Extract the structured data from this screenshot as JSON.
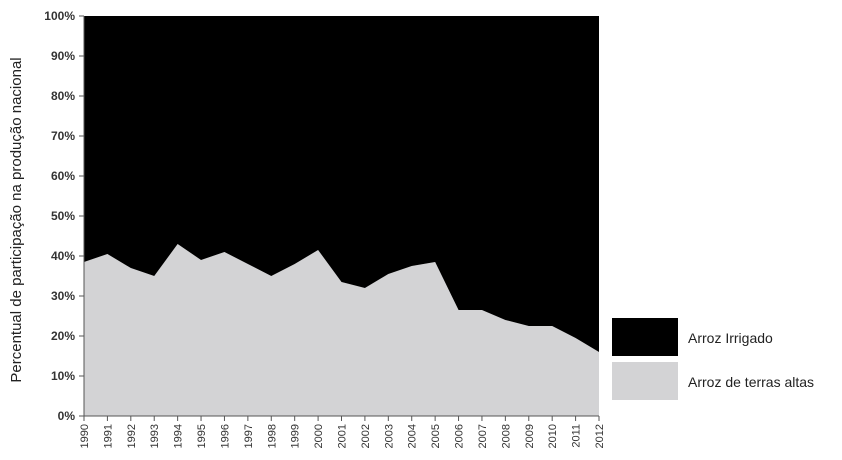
{
  "chart_data": {
    "type": "area",
    "stacked": true,
    "percent": true,
    "title": "",
    "xlabel": "",
    "ylabel": "Percentual de participação na produção nacional",
    "ylim": [
      0,
      100
    ],
    "yticks": [
      "0%",
      "10%",
      "20%",
      "30%",
      "40%",
      "50%",
      "60%",
      "70%",
      "80%",
      "90%",
      "100%"
    ],
    "x": [
      "1990",
      "1991",
      "1992",
      "1993",
      "1994",
      "1995",
      "1996",
      "1997",
      "1998",
      "1999",
      "2000",
      "2001",
      "2002",
      "2003",
      "2004",
      "2005",
      "2006",
      "2007",
      "2008",
      "2009",
      "2010",
      "2011",
      "2012"
    ],
    "series": [
      {
        "name": "Arroz de terras altas",
        "color": "#d3d3d5",
        "values": [
          38.5,
          40.5,
          37,
          35,
          43,
          39,
          41,
          38,
          35,
          38,
          41.5,
          33.5,
          32,
          35.5,
          37.5,
          38.5,
          26.5,
          26.5,
          24,
          22.5,
          22.5,
          19.5,
          16
        ]
      },
      {
        "name": "Arroz Irrigado",
        "color": "#000000",
        "values": [
          61.5,
          59.5,
          63,
          65,
          57,
          61,
          59,
          62,
          65,
          62,
          58.5,
          66.5,
          68,
          64.5,
          62.5,
          61.5,
          73.5,
          73.5,
          76,
          77.5,
          77.5,
          80.5,
          84
        ]
      }
    ],
    "legend": {
      "position": "right",
      "order": [
        "Arroz Irrigado",
        "Arroz de terras altas"
      ]
    },
    "grid": false
  }
}
